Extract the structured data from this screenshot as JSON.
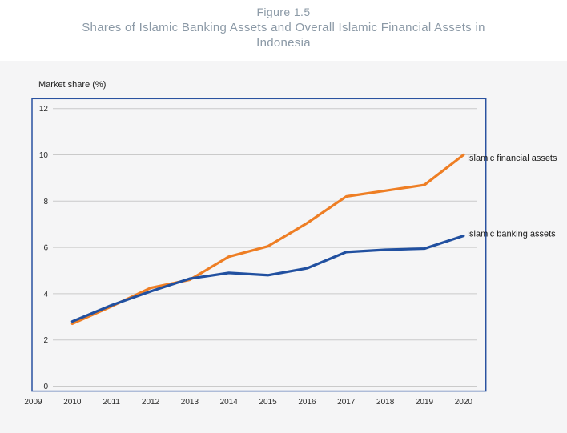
{
  "header": {
    "figure_label": "Figure 1.5",
    "title_line1": "Shares of Islamic Banking Assets and Overall Islamic Financial Assets in",
    "title_line2": "Indonesia"
  },
  "chart": {
    "axis_title": "Market share (%)"
  },
  "colors": {
    "financial_line": "#ee7e24",
    "banking_line": "#2150a0",
    "plot_border": "#2a52a0",
    "gridline": "#cacaca",
    "title_gray": "#8b99a6",
    "tick_text": "#2b2b2b",
    "page_background": "#f5f5f6",
    "header_background": "#ffffff"
  },
  "chart_data": {
    "type": "line",
    "title": "Shares of Islamic Banking Assets and Overall Islamic Financial Assets in Indonesia",
    "figure_label": "Figure 1.5",
    "xlabel": "",
    "ylabel": "Market share (%)",
    "ylim": [
      0,
      12
    ],
    "y_ticks": [
      0,
      2,
      4,
      6,
      8,
      10,
      12
    ],
    "x_ticks": [
      2009,
      2010,
      2011,
      2012,
      2013,
      2014,
      2015,
      2016,
      2017,
      2018,
      2019,
      2020
    ],
    "grid": "horizontal",
    "legend_position": "line-end-labels",
    "x": [
      2010,
      2011,
      2012,
      2013,
      2014,
      2015,
      2016,
      2017,
      2018,
      2019,
      2020
    ],
    "series": [
      {
        "name": "Islamic financial assets",
        "color": "#ee7e24",
        "values": [
          2.7,
          3.45,
          4.25,
          4.6,
          5.6,
          6.05,
          7.05,
          8.2,
          8.45,
          8.7,
          10.0
        ]
      },
      {
        "name": "Islamic banking assets",
        "color": "#2150a0",
        "values": [
          2.8,
          3.5,
          4.1,
          4.65,
          4.9,
          4.8,
          5.1,
          5.8,
          5.9,
          5.95,
          6.5
        ]
      }
    ]
  }
}
